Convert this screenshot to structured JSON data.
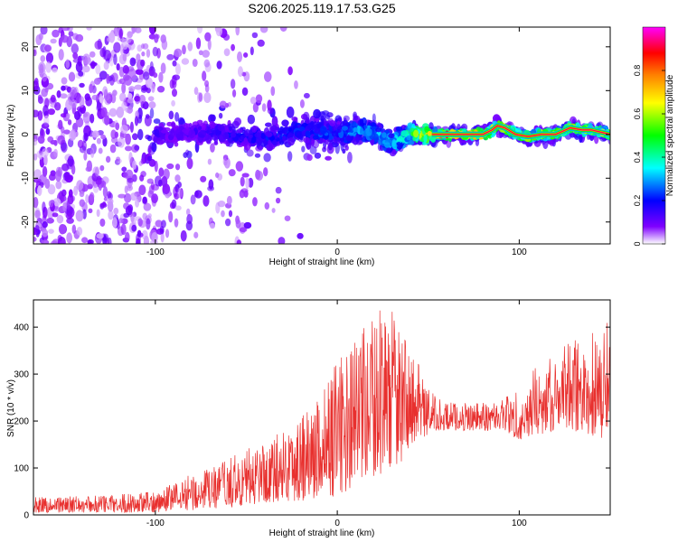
{
  "figure_title": "S206.2025.119.17.53.G25",
  "chart_data": [
    {
      "type": "heatmap",
      "title": "S206.2025.119.17.53.G25",
      "xlabel": "Height of straight line (km)",
      "ylabel": "Frequency (Hz)",
      "xlim": [
        -167,
        150
      ],
      "ylim": [
        -25,
        24.5
      ],
      "x_ticks": [
        -100,
        0,
        100
      ],
      "y_ticks": [
        -20,
        -10,
        0,
        10,
        20
      ],
      "grid": false,
      "colorbar": {
        "label": "Normalized spectral amplitude",
        "range": [
          0,
          1
        ],
        "ticks": [
          0,
          0.2,
          0.4,
          0.6,
          0.8
        ],
        "colormap": [
          "#ffffff",
          "#7f00ff",
          "#0000ff",
          "#00ffff",
          "#00ff00",
          "#ffff00",
          "#ff7f00",
          "#ff0000",
          "#ff00ff"
        ]
      },
      "ridge": {
        "description": "dominant frequency track, normalized amplitude",
        "x": [
          -95,
          -80,
          -60,
          -40,
          -20,
          0,
          10,
          20,
          30,
          40,
          52,
          60,
          70,
          80,
          85,
          88,
          92,
          98,
          105,
          112,
          120,
          128,
          135,
          140,
          150
        ],
        "y": [
          0,
          0.5,
          0,
          -1,
          1,
          0,
          1,
          0.5,
          -2,
          0,
          0,
          0,
          0,
          0,
          1,
          2,
          1.5,
          0,
          -0.5,
          0,
          0,
          1.5,
          1,
          1,
          0
        ],
        "amplitude": [
          0.15,
          0.15,
          0.2,
          0.22,
          0.25,
          0.3,
          0.35,
          0.35,
          0.4,
          0.5,
          0.85,
          0.85,
          0.85,
          0.85,
          0.8,
          0.75,
          0.75,
          0.7,
          0.7,
          0.7,
          0.7,
          0.7,
          0.7,
          0.65,
          0.6
        ]
      }
    },
    {
      "type": "line",
      "title": "",
      "xlabel": "Height of straight line (km)",
      "ylabel": "SNR (10 * v/v)",
      "xlim": [
        -167,
        150
      ],
      "ylim": [
        0,
        458
      ],
      "x_ticks": [
        -100,
        0,
        100
      ],
      "y_ticks": [
        0,
        100,
        200,
        300,
        400
      ],
      "grid": false,
      "series": [
        {
          "color": "#e8302e",
          "description": "envelope of SNR trace (upper / lower bounds)",
          "x": [
            -167,
            -140,
            -120,
            -100,
            -90,
            -80,
            -70,
            -60,
            -50,
            -40,
            -30,
            -20,
            -10,
            0,
            10,
            20,
            25,
            30,
            35,
            40,
            45,
            50,
            55,
            60,
            70,
            80,
            90,
            100,
            110,
            120,
            130,
            140,
            150
          ],
          "upper": [
            40,
            40,
            45,
            50,
            70,
            90,
            100,
            120,
            140,
            160,
            180,
            220,
            260,
            330,
            380,
            420,
            458,
            440,
            400,
            350,
            320,
            270,
            250,
            240,
            240,
            240,
            250,
            270,
            320,
            340,
            380,
            400,
            420
          ],
          "lower": [
            5,
            5,
            5,
            5,
            10,
            10,
            12,
            15,
            20,
            25,
            30,
            30,
            35,
            40,
            60,
            80,
            90,
            100,
            110,
            150,
            160,
            170,
            180,
            180,
            180,
            180,
            180,
            160,
            170,
            180,
            180,
            160,
            160
          ]
        }
      ]
    }
  ]
}
